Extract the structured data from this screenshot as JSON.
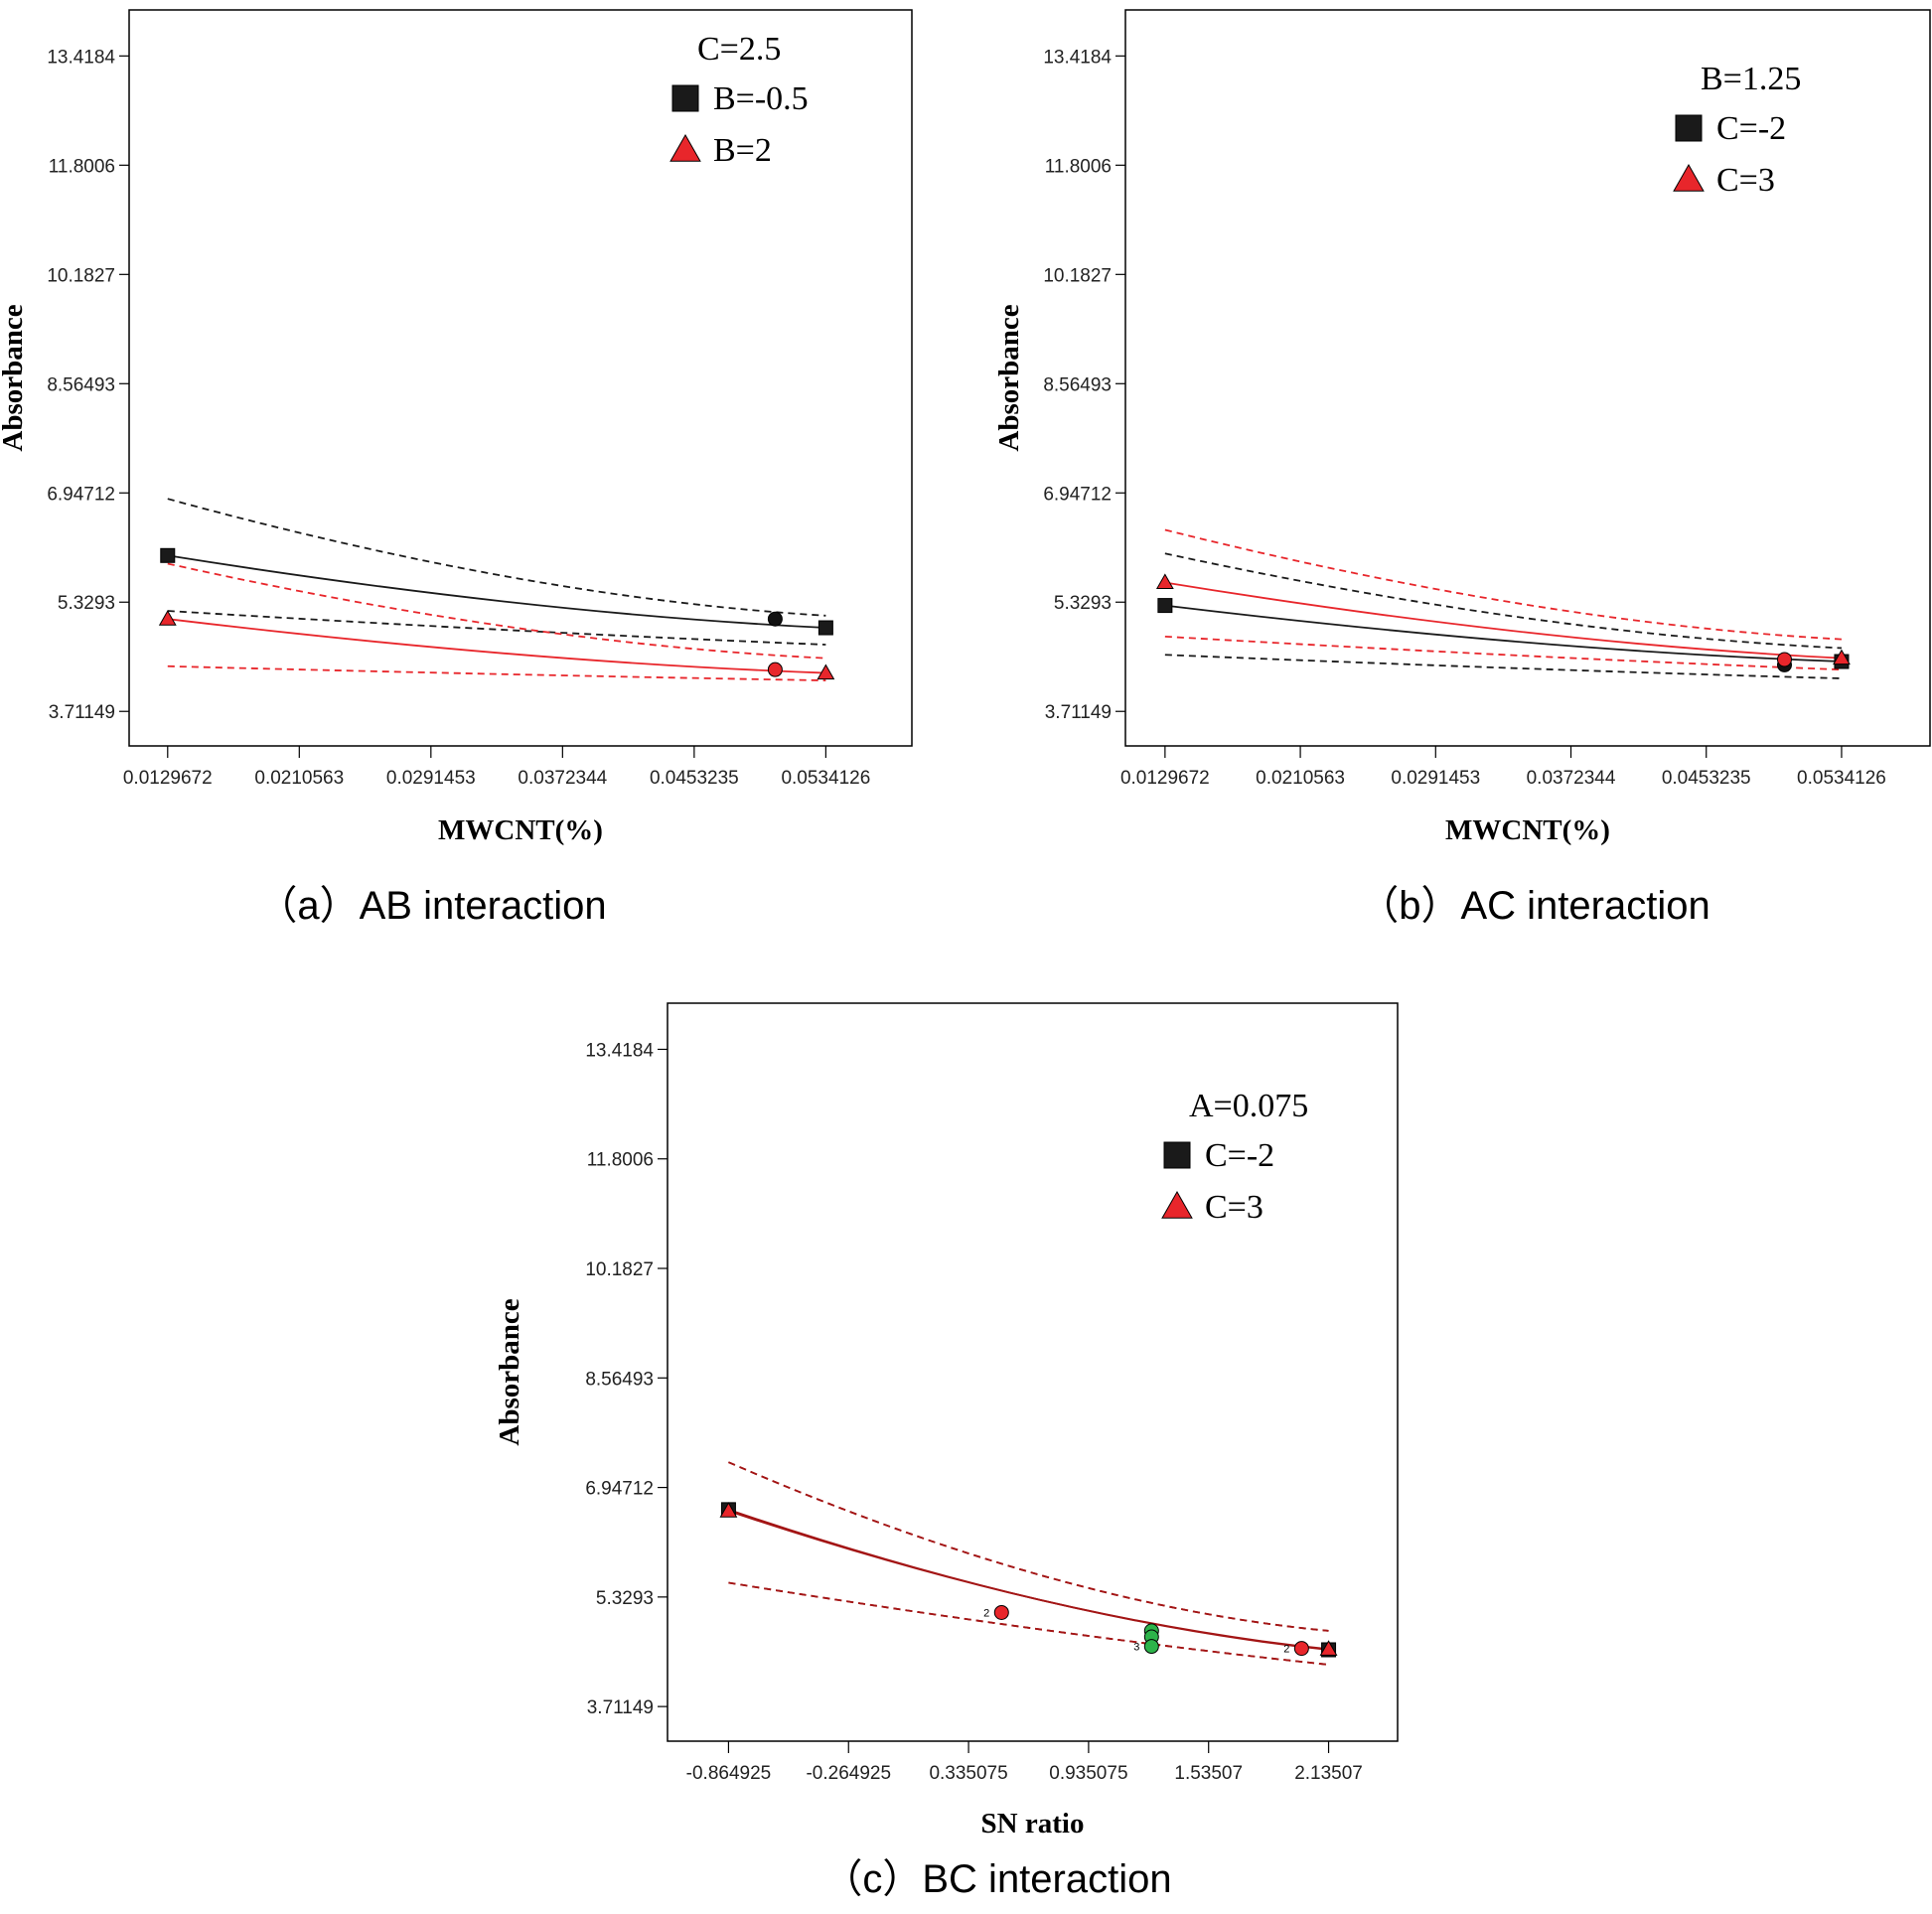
{
  "chart_data": [
    {
      "type": "line",
      "caption": "（a）AB interaction",
      "xlabel": "MWCNT(%)",
      "ylabel": "Absorbance",
      "x_ticks": [
        "0.0129672",
        "0.0210563",
        "0.0291453",
        "0.0372344",
        "0.0453235",
        "0.0534126"
      ],
      "y_ticks": [
        "3.71149",
        "5.3293",
        "6.94712",
        "8.56493",
        "10.1827",
        "11.8006",
        "13.4184"
      ],
      "xlim": [
        0.0106,
        0.0587
      ],
      "ylim": [
        3.2,
        14.1
      ],
      "legend_title": "C=2.5",
      "legend_position": "top-right",
      "series": [
        {
          "name": "B=-0.5",
          "color": "#1a1a1a",
          "marker": "square",
          "x": [
            0.0129672,
            0.0534126
          ],
          "y": [
            6.02,
            4.95
          ],
          "ci_lower": [
            5.2,
            4.7
          ],
          "ci_upper": [
            6.86,
            5.13
          ]
        },
        {
          "name": "B=2",
          "color": "#e8262b",
          "marker": "triangle",
          "x": [
            0.0129672,
            0.0534126
          ],
          "y": [
            5.08,
            4.28
          ],
          "ci_lower": [
            4.38,
            4.17
          ],
          "ci_upper": [
            5.9,
            4.5
          ]
        }
      ],
      "design_points": [
        {
          "x": 0.0503,
          "y": 5.08,
          "color": "#111111"
        },
        {
          "x": 0.0503,
          "y": 4.33,
          "color": "#e8262b"
        }
      ]
    },
    {
      "type": "line",
      "caption": "（b）AC interaction",
      "xlabel": "MWCNT(%)",
      "ylabel": "Absorbance",
      "x_ticks": [
        "0.0129672",
        "0.0210563",
        "0.0291453",
        "0.0372344",
        "0.0453235",
        "0.0534126"
      ],
      "y_ticks": [
        "3.71149",
        "5.3293",
        "6.94712",
        "8.56493",
        "10.1827",
        "11.8006",
        "13.4184"
      ],
      "xlim": [
        0.0106,
        0.0587
      ],
      "ylim": [
        3.2,
        14.1
      ],
      "legend_title": "B=1.25",
      "legend_position": "top-right",
      "series": [
        {
          "name": "C=-2",
          "color": "#1a1a1a",
          "marker": "square",
          "x": [
            0.0129672,
            0.0534126
          ],
          "y": [
            5.28,
            4.45
          ],
          "ci_lower": [
            4.55,
            4.2
          ],
          "ci_upper": [
            6.05,
            4.65
          ]
        },
        {
          "name": "C=3",
          "color": "#e8262b",
          "marker": "triangle",
          "x": [
            0.0129672,
            0.0534126
          ],
          "y": [
            5.62,
            4.5
          ],
          "ci_lower": [
            4.82,
            4.33
          ],
          "ci_upper": [
            6.4,
            4.78
          ]
        }
      ],
      "design_points": [
        {
          "x": 0.05,
          "y": 4.4,
          "color": "#111111"
        },
        {
          "x": 0.05,
          "y": 4.48,
          "color": "#e8262b"
        }
      ]
    },
    {
      "type": "line",
      "caption": "（c）BC interaction",
      "xlabel": "SN ratio",
      "ylabel": "Absorbance",
      "x_ticks": [
        "-0.864925",
        "-0.264925",
        "0.335075",
        "0.935075",
        "1.53507",
        "2.13507"
      ],
      "y_ticks": [
        "3.71149",
        "5.3293",
        "6.94712",
        "8.56493",
        "10.1827",
        "11.8006",
        "13.4184"
      ],
      "xlim": [
        -1.17,
        2.48
      ],
      "ylim": [
        3.2,
        14.1
      ],
      "legend_title": "A=0.075",
      "legend_position": "top-right",
      "series": [
        {
          "name": "C=-2",
          "color": "#1a1a1a",
          "marker": "square",
          "x": [
            -0.864925,
            2.13507
          ],
          "y": [
            6.62,
            4.55
          ],
          "ci_lower": [
            5.54,
            4.33
          ],
          "ci_upper": [
            7.32,
            4.83
          ]
        },
        {
          "name": "C=3",
          "color": "#e8262b",
          "marker": "triangle",
          "x": [
            -0.864925,
            2.13507
          ],
          "y": [
            6.6,
            4.56
          ],
          "ci_lower": [
            5.54,
            4.33
          ],
          "ci_upper": [
            7.32,
            4.83
          ]
        }
      ],
      "fit_color": "#a31515",
      "design_points": [
        {
          "x": 0.5,
          "y": 5.1,
          "color": "#e8262b",
          "label": "2"
        },
        {
          "x": 1.25,
          "y": 4.83,
          "color": "#2db34a"
        },
        {
          "x": 1.25,
          "y": 4.74,
          "color": "#2db34a"
        },
        {
          "x": 1.25,
          "y": 4.6,
          "color": "#2db34a",
          "label": "3"
        },
        {
          "x": 2.0,
          "y": 4.57,
          "color": "#e8262b",
          "label": "2"
        }
      ]
    }
  ]
}
